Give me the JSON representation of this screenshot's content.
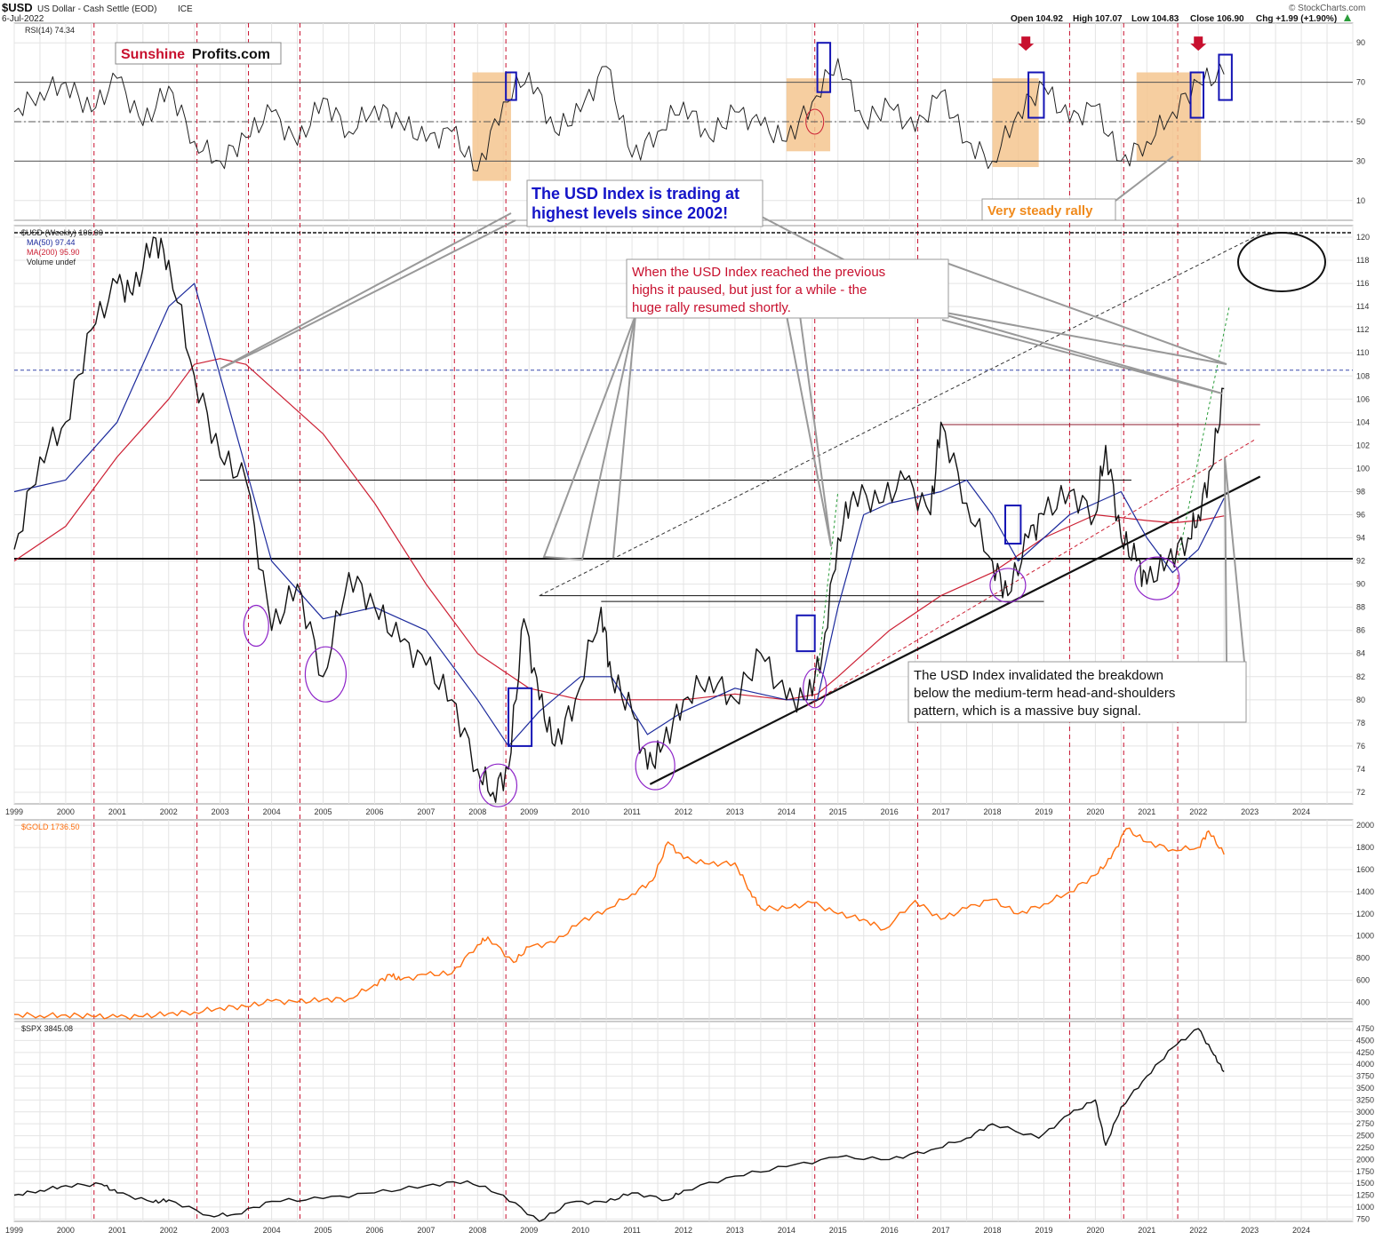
{
  "header": {
    "symbol": "$USD",
    "name": "US Dollar - Cash Settle (EOD)",
    "exchange": "ICE",
    "date": "6-Jul-2022",
    "credit": "© StockCharts.com",
    "open": "Open 104.92",
    "high": "High 107.07",
    "low": "Low 104.83",
    "close": "Close 106.90",
    "chg": "Chg +1.99 (+1.90%)"
  },
  "logo": {
    "part1": "Sunshine",
    "part2": "Profits.com"
  },
  "colors": {
    "rsi": "#222222",
    "price": "#111111",
    "ma50": "#1c2a9c",
    "ma200": "#cc1f33",
    "gold": "#ff6f0e",
    "spx": "#111111",
    "highlight": "#f5c68f",
    "box": "#1414b4",
    "circle": "#8e24c8",
    "vline": "#c8102e",
    "arrow": "#c8102e"
  },
  "chart_data": [
    {
      "type": "line",
      "panel": "rsi",
      "legend": "RSI(14) 74.34",
      "ylim": [
        0,
        100
      ],
      "y_ticks": [
        10,
        30,
        50,
        70,
        90
      ],
      "reference_lines": [
        30,
        50,
        70
      ],
      "x": [
        1999.0,
        1999.5,
        2000.0,
        2000.5,
        2001.0,
        2001.5,
        2002.0,
        2002.5,
        2003.0,
        2003.5,
        2004.0,
        2004.5,
        2005.0,
        2005.5,
        2006.0,
        2006.5,
        2007.0,
        2007.5,
        2008.0,
        2008.5,
        2009.0,
        2009.5,
        2010.0,
        2010.5,
        2011.0,
        2011.5,
        2012.0,
        2012.5,
        2013.0,
        2013.5,
        2014.0,
        2014.5,
        2015.0,
        2015.5,
        2016.0,
        2016.5,
        2017.0,
        2017.5,
        2018.0,
        2018.5,
        2019.0,
        2019.5,
        2020.0,
        2020.5,
        2021.0,
        2021.5,
        2022.0,
        2022.5
      ],
      "values": [
        55,
        65,
        70,
        55,
        72,
        48,
        68,
        40,
        30,
        42,
        55,
        38,
        62,
        45,
        58,
        50,
        40,
        45,
        25,
        60,
        75,
        45,
        55,
        78,
        32,
        45,
        60,
        42,
        55,
        48,
        40,
        60,
        82,
        50,
        58,
        45,
        65,
        40,
        30,
        55,
        68,
        50,
        58,
        30,
        40,
        55,
        70,
        74
      ]
    },
    {
      "type": "line",
      "panel": "price",
      "legend": [
        "$USD (Weekly) 106.90",
        "MA(50) 97.44",
        "MA(200) 95.90",
        "Volume undef"
      ],
      "ylim": [
        71,
        121
      ],
      "y_ticks": [
        72,
        74,
        76,
        78,
        80,
        82,
        84,
        86,
        88,
        90,
        92,
        94,
        96,
        98,
        100,
        102,
        104,
        106,
        108,
        110,
        112,
        114,
        116,
        118,
        120
      ],
      "x_ticks": [
        "1999",
        "2000",
        "2001",
        "2002",
        "2003",
        "2004",
        "2005",
        "2006",
        "2007",
        "2008",
        "2009",
        "2010",
        "2011",
        "2012",
        "2013",
        "2014",
        "2015",
        "2016",
        "2017",
        "2018",
        "2019",
        "2020",
        "2021",
        "2022",
        "2023",
        "2024"
      ],
      "series": [
        {
          "name": "$USD (Weekly) 106.90",
          "x": [
            1999.0,
            1999.5,
            2000.0,
            2000.5,
            2001.0,
            2001.3,
            2001.7,
            2002.0,
            2002.5,
            2003.0,
            2003.5,
            2004.0,
            2004.5,
            2005.0,
            2005.5,
            2006.0,
            2006.5,
            2007.0,
            2007.5,
            2008.0,
            2008.3,
            2008.6,
            2008.9,
            2009.2,
            2009.5,
            2009.9,
            2010.4,
            2010.6,
            2011.0,
            2011.3,
            2011.6,
            2012.0,
            2012.5,
            2013.0,
            2013.5,
            2014.0,
            2014.4,
            2014.7,
            2015.0,
            2015.3,
            2015.8,
            2016.3,
            2016.8,
            2017.0,
            2017.5,
            2018.0,
            2018.3,
            2018.7,
            2019.0,
            2019.5,
            2020.0,
            2020.2,
            2020.5,
            2020.8,
            2021.0,
            2021.4,
            2021.8,
            2022.0,
            2022.25,
            2022.5
          ],
          "values": [
            93,
            101,
            104,
            112,
            116,
            115,
            120,
            118,
            108,
            101,
            99,
            86,
            90,
            82,
            91,
            88,
            85,
            83,
            80,
            74,
            72,
            74,
            87,
            80,
            76,
            80,
            88,
            82,
            79,
            74,
            76,
            80,
            82,
            80,
            84,
            80,
            80,
            84,
            94,
            98,
            97,
            99,
            96,
            104,
            97,
            92,
            89,
            94,
            96,
            98,
            96,
            102,
            94,
            92,
            90,
            92,
            94,
            96,
            100,
            106.9
          ]
        },
        {
          "name": "MA(50) 97.44",
          "x": [
            1999.0,
            2000.0,
            2001.0,
            2002.0,
            2002.5,
            2003.0,
            2003.5,
            2004.0,
            2005.0,
            2006.0,
            2007.0,
            2008.0,
            2008.6,
            2009.2,
            2010.0,
            2010.6,
            2011.3,
            2012.0,
            2013.0,
            2014.0,
            2014.6,
            2015.0,
            2015.5,
            2016.0,
            2017.0,
            2017.5,
            2018.0,
            2018.5,
            2019.0,
            2019.5,
            2020.0,
            2020.5,
            2021.0,
            2021.5,
            2022.0,
            2022.5
          ],
          "values": [
            98,
            99,
            104,
            114,
            116,
            108,
            100,
            92,
            87,
            88,
            86,
            80,
            76,
            79,
            82,
            82,
            77,
            79,
            81,
            80,
            80,
            88,
            96,
            97,
            98,
            99,
            96,
            92,
            94,
            96,
            97,
            98,
            94,
            91,
            93,
            97.44
          ]
        },
        {
          "name": "MA(200) 95.90",
          "x": [
            1999.0,
            2000.0,
            2001.0,
            2002.0,
            2002.5,
            2003.0,
            2003.5,
            2004.0,
            2005.0,
            2006.0,
            2007.0,
            2008.0,
            2009.0,
            2010.0,
            2011.0,
            2012.0,
            2013.0,
            2014.0,
            2014.6,
            2015.0,
            2016.0,
            2017.0,
            2018.0,
            2019.0,
            2020.0,
            2021.0,
            2021.5,
            2022.0,
            2022.5
          ],
          "values": [
            92,
            95,
            101,
            106,
            109,
            109.5,
            109,
            107,
            103,
            97,
            90,
            84,
            81,
            80,
            80,
            80,
            80.5,
            80,
            80.5,
            82,
            86,
            89,
            91,
            94,
            96,
            95.5,
            95.3,
            95.5,
            95.9
          ]
        }
      ]
    },
    {
      "type": "line",
      "panel": "gold",
      "legend": "$GOLD 1736.50",
      "ylim": [
        250,
        2050
      ],
      "y_ticks": [
        400,
        600,
        800,
        1000,
        1200,
        1400,
        1600,
        1800,
        2000
      ],
      "series": [
        {
          "name": "$GOLD 1736.50",
          "x": [
            1999.0,
            1999.5,
            2000.0,
            2000.5,
            2001.0,
            2001.5,
            2002.0,
            2002.5,
            2003.0,
            2003.5,
            2004.0,
            2004.5,
            2005.0,
            2005.5,
            2006.0,
            2006.3,
            2006.5,
            2007.0,
            2007.5,
            2008.0,
            2008.2,
            2008.7,
            2009.0,
            2009.5,
            2010.0,
            2010.5,
            2011.0,
            2011.4,
            2011.7,
            2012.0,
            2012.5,
            2013.0,
            2013.3,
            2013.5,
            2014.0,
            2014.5,
            2015.0,
            2015.5,
            2015.9,
            2016.5,
            2017.0,
            2017.5,
            2018.0,
            2018.5,
            2019.0,
            2019.5,
            2020.0,
            2020.3,
            2020.6,
            2021.0,
            2021.5,
            2022.0,
            2022.2,
            2022.5
          ],
          "values": [
            290,
            280,
            285,
            275,
            265,
            270,
            300,
            310,
            350,
            360,
            410,
            400,
            425,
            430,
            560,
            650,
            600,
            650,
            660,
            920,
            990,
            760,
            900,
            940,
            1130,
            1240,
            1380,
            1500,
            1850,
            1700,
            1650,
            1660,
            1400,
            1250,
            1250,
            1300,
            1200,
            1150,
            1060,
            1320,
            1150,
            1250,
            1330,
            1200,
            1290,
            1400,
            1550,
            1700,
            1970,
            1850,
            1780,
            1800,
            1950,
            1736.5
          ]
        }
      ]
    },
    {
      "type": "line",
      "panel": "spx",
      "legend": "$SPX 3845.08",
      "ylim": [
        700,
        4900
      ],
      "y_ticks": [
        750,
        1000,
        1250,
        1500,
        1750,
        2000,
        2250,
        2500,
        2750,
        3000,
        3250,
        3500,
        3750,
        4000,
        4250,
        4500,
        4750
      ],
      "x_ticks": [
        "1999",
        "2000",
        "2001",
        "2002",
        "2003",
        "2004",
        "2005",
        "2006",
        "2007",
        "2008",
        "2009",
        "2010",
        "2011",
        "2012",
        "2013",
        "2014",
        "2015",
        "2016",
        "2017",
        "2018",
        "2019",
        "2020",
        "2021",
        "2022",
        "2023",
        "2024"
      ],
      "series": [
        {
          "name": "$SPX 3845.08",
          "x": [
            1999.0,
            1999.5,
            2000.0,
            2000.7,
            2001.0,
            2001.7,
            2002.0,
            2002.8,
            2003.3,
            2004.0,
            2005.0,
            2006.0,
            2007.0,
            2007.8,
            2008.5,
            2009.2,
            2009.8,
            2010.5,
            2011.0,
            2011.7,
            2012.0,
            2013.0,
            2014.0,
            2015.0,
            2016.0,
            2016.8,
            2017.5,
            2018.0,
            2018.9,
            2019.5,
            2020.0,
            2020.2,
            2020.5,
            2021.0,
            2021.5,
            2022.0,
            2022.3,
            2022.5
          ],
          "values": [
            1250,
            1350,
            1450,
            1480,
            1300,
            1100,
            1150,
            820,
            850,
            1120,
            1180,
            1300,
            1450,
            1550,
            1250,
            700,
            1100,
            1100,
            1300,
            1150,
            1350,
            1650,
            1850,
            2050,
            2000,
            2200,
            2450,
            2750,
            2450,
            2950,
            3250,
            2300,
            3100,
            3750,
            4350,
            4750,
            4200,
            3845
          ]
        }
      ]
    }
  ],
  "annotations": {
    "very_steady_rally": "Very steady rally",
    "highest_levels": [
      "The USD Index is trading at",
      "highest levels since 2002!"
    ],
    "previous_highs": [
      "When the USD Index reached the previous",
      "highs it paused, but just for a while - the",
      "huge rally resumed shortly."
    ],
    "invalidated": [
      "The USD Index invalidated the breakdown",
      "below the medium-term head-and-shoulders",
      "pattern, which is a massive buy signal."
    ]
  }
}
